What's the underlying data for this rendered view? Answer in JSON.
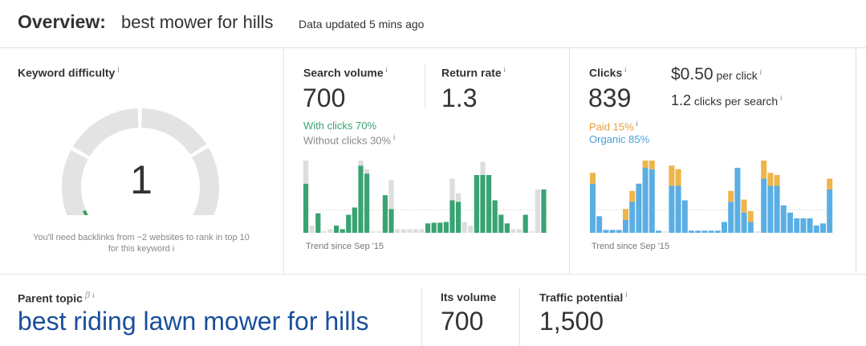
{
  "overview": {
    "label": "Overview:",
    "keyword": "best mower for hills",
    "updated": "Data updated 5 mins ago"
  },
  "info_glyph": "i",
  "difficulty": {
    "title": "Keyword difficulty",
    "value": "1",
    "score": 1,
    "note": "You'll need backlinks from ~2 websites to rank in top 10 for this keyword",
    "color": "#3aa35b"
  },
  "search": {
    "title": "Search volume",
    "value": "700",
    "with_clicks": "With clicks 70%",
    "without_clicks": "Without clicks 30%",
    "trend": "Trend since Sep '15"
  },
  "return_rate": {
    "title": "Return rate",
    "value": "1.3"
  },
  "clicks": {
    "title": "Clicks",
    "value": "839",
    "per_click_value": "$0.50",
    "per_click_label": "per click",
    "per_search_value": "1.2",
    "per_search_label": "clicks per search",
    "paid": "Paid 15%",
    "organic": "Organic 85%",
    "trend": "Trend since Sep '15"
  },
  "parent": {
    "title": "Parent topic",
    "beta": "β",
    "topic": "best riding lawn mower for hills",
    "volume_title": "Its volume",
    "volume": "700",
    "traffic_title": "Traffic potential",
    "traffic": "1,500"
  },
  "colors": {
    "green": "#3aa373",
    "bar_grey": "#dddddd",
    "orange": "#eeb54b",
    "blue": "#5aaee3",
    "link": "#1a4f9c"
  },
  "chart_data": [
    {
      "type": "bar",
      "name": "search-volume-trend",
      "xlabel": "Trend since Sep '15",
      "ylim": [
        0,
        1
      ],
      "series": [
        {
          "name": "With clicks",
          "values": [
            0.68,
            0.0,
            0.27,
            0.0,
            0.0,
            0.1,
            0.05,
            0.25,
            0.35,
            0.93,
            0.82,
            0.0,
            0.0,
            0.52,
            0.33,
            0.0,
            0.0,
            0.0,
            0.0,
            0.0,
            0.13,
            0.14,
            0.14,
            0.15,
            0.45,
            0.43,
            0.0,
            0.0,
            0.8,
            0.8,
            0.8,
            0.45,
            0.25,
            0.13,
            0.0,
            0.0,
            0.25,
            0.0,
            0.0,
            0.6
          ]
        },
        {
          "name": "Without clicks",
          "values": [
            0.32,
            0.1,
            0.0,
            0.0,
            0.05,
            0.0,
            0.0,
            0.0,
            0.0,
            0.07,
            0.06,
            0.0,
            0.0,
            0.0,
            0.4,
            0.05,
            0.05,
            0.05,
            0.05,
            0.05,
            0.0,
            0.0,
            0.0,
            0.0,
            0.3,
            0.12,
            0.15,
            0.1,
            0.0,
            0.18,
            0.0,
            0.0,
            0.0,
            0.0,
            0.05,
            0.05,
            0.0,
            0.0,
            0.6,
            0.0
          ]
        }
      ]
    },
    {
      "type": "bar",
      "name": "clicks-trend",
      "xlabel": "Trend since Sep '15",
      "ylim": [
        0,
        1
      ],
      "series": [
        {
          "name": "Organic",
          "values": [
            0.68,
            0.23,
            0.04,
            0.04,
            0.04,
            0.18,
            0.43,
            0.68,
            0.9,
            0.88,
            0.03,
            0.0,
            0.65,
            0.65,
            0.45,
            0.03,
            0.03,
            0.03,
            0.03,
            0.03,
            0.15,
            0.43,
            0.9,
            0.28,
            0.15,
            0.0,
            0.75,
            0.65,
            0.65,
            0.38,
            0.28,
            0.2,
            0.2,
            0.2,
            0.1,
            0.13,
            0.6
          ]
        },
        {
          "name": "Paid",
          "values": [
            0.15,
            0.0,
            0.0,
            0.0,
            0.0,
            0.15,
            0.15,
            0.0,
            0.1,
            0.12,
            0.0,
            0.0,
            0.28,
            0.23,
            0.0,
            0.0,
            0.0,
            0.0,
            0.0,
            0.0,
            0.0,
            0.15,
            0.0,
            0.18,
            0.15,
            0.0,
            0.25,
            0.18,
            0.15,
            0.0,
            0.0,
            0.0,
            0.0,
            0.0,
            0.0,
            0.0,
            0.15
          ]
        }
      ]
    }
  ]
}
